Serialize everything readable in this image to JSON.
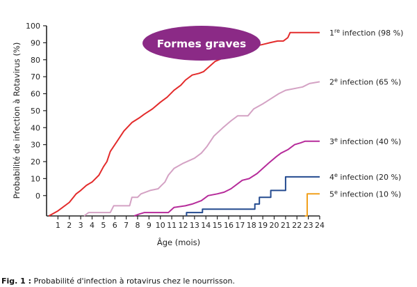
{
  "chart_data": {
    "type": "line",
    "xlabel": "Âge (mois)",
    "ylabel": "Probabilité de infection à Rotavirus (%)",
    "x_ticks": [
      1,
      2,
      3,
      4,
      5,
      6,
      7,
      8,
      9,
      10,
      11,
      12,
      13,
      14,
      15,
      16,
      17,
      18,
      19,
      20,
      21,
      22,
      23,
      24
    ],
    "y_ticks": [
      {
        "label": "100",
        "value": 100
      },
      {
        "label": "90",
        "value": 90
      },
      {
        "label": "80",
        "value": 80
      },
      {
        "label": "70",
        "value": 70
      },
      {
        "label": "60",
        "value": 60
      },
      {
        "label": "50",
        "value": 50
      },
      {
        "label": "40",
        "value": 40
      },
      {
        "label": "30",
        "value": 30
      },
      {
        "label": "20",
        "value": 20
      },
      {
        "label": "10",
        "value": 10
      },
      {
        "label": "0",
        "value": 0
      }
    ],
    "xlim": [
      0,
      24
    ],
    "ylim": [
      -12,
      100
    ],
    "annotation": {
      "text": "Formes graves",
      "color": "#8b2a86"
    },
    "series": [
      {
        "name": "1re infection (98 %)",
        "label_main": "1",
        "label_sup": "re",
        "label_rest": " infection (98 %)",
        "color": "#e32b2b",
        "points": [
          [
            0.2,
            -12
          ],
          [
            1,
            -9
          ],
          [
            2,
            -4
          ],
          [
            2.6,
            1
          ],
          [
            3,
            3
          ],
          [
            3.5,
            6
          ],
          [
            4,
            8
          ],
          [
            4.6,
            12
          ],
          [
            5,
            17
          ],
          [
            5.3,
            20
          ],
          [
            5.6,
            26
          ],
          [
            6.2,
            32
          ],
          [
            6.8,
            38
          ],
          [
            7.5,
            43
          ],
          [
            8.2,
            46
          ],
          [
            8.6,
            48
          ],
          [
            9.3,
            51
          ],
          [
            10,
            55
          ],
          [
            10.6,
            58
          ],
          [
            11.2,
            62
          ],
          [
            11.8,
            65
          ],
          [
            12.2,
            68
          ],
          [
            12.8,
            71
          ],
          [
            13.4,
            72
          ],
          [
            13.8,
            73
          ],
          [
            14.3,
            76
          ],
          [
            14.8,
            79
          ],
          [
            15.5,
            81
          ],
          [
            16.2,
            83
          ],
          [
            16.8,
            85
          ],
          [
            17.5,
            87
          ],
          [
            18.3,
            88
          ],
          [
            19,
            89
          ],
          [
            19.6,
            90
          ],
          [
            20.3,
            91
          ],
          [
            20.8,
            91
          ],
          [
            21.2,
            93
          ],
          [
            21.4,
            96
          ],
          [
            22.4,
            96
          ],
          [
            23,
            96
          ],
          [
            24,
            96
          ]
        ]
      },
      {
        "name": "2e infection (65 %)",
        "label_main": "2",
        "label_sup": "e",
        "label_rest": " infection (65 %)",
        "color": "#d4a2c4",
        "points": [
          [
            3.3,
            -12
          ],
          [
            3.7,
            -10
          ],
          [
            5.6,
            -10
          ],
          [
            5.9,
            -6
          ],
          [
            7.3,
            -6
          ],
          [
            7.5,
            -1
          ],
          [
            8,
            -1
          ],
          [
            8.3,
            1
          ],
          [
            9.1,
            3
          ],
          [
            9.8,
            4
          ],
          [
            10.1,
            6
          ],
          [
            10.4,
            8
          ],
          [
            10.7,
            12
          ],
          [
            11.2,
            16
          ],
          [
            12,
            19
          ],
          [
            13,
            22
          ],
          [
            13.6,
            25
          ],
          [
            14.1,
            29
          ],
          [
            14.7,
            35
          ],
          [
            15.5,
            40
          ],
          [
            16.2,
            44
          ],
          [
            16.8,
            47
          ],
          [
            17.7,
            47
          ],
          [
            18.2,
            51
          ],
          [
            19,
            54
          ],
          [
            19.7,
            57
          ],
          [
            20.4,
            60
          ],
          [
            21,
            62
          ],
          [
            22.5,
            64
          ],
          [
            23.1,
            66
          ],
          [
            24,
            67
          ]
        ]
      },
      {
        "name": "3e infection (40 %)",
        "label_main": "3",
        "label_sup": "e",
        "label_rest": " infection (40 %)",
        "color": "#b62b9a",
        "points": [
          [
            7.7,
            -12
          ],
          [
            8.1,
            -11
          ],
          [
            8.6,
            -10
          ],
          [
            10.7,
            -10
          ],
          [
            11.2,
            -7
          ],
          [
            12.2,
            -6
          ],
          [
            12.8,
            -5
          ],
          [
            13.6,
            -3
          ],
          [
            14.2,
            0
          ],
          [
            15,
            1
          ],
          [
            15.6,
            2
          ],
          [
            16.2,
            4
          ],
          [
            16.8,
            7
          ],
          [
            17.2,
            9
          ],
          [
            17.8,
            10
          ],
          [
            18.5,
            13
          ],
          [
            19,
            16
          ],
          [
            19.5,
            19
          ],
          [
            20.2,
            23
          ],
          [
            20.6,
            25
          ],
          [
            21.2,
            27
          ],
          [
            21.8,
            30
          ],
          [
            22.3,
            31
          ],
          [
            22.7,
            32
          ],
          [
            24,
            32
          ]
        ]
      },
      {
        "name": "4e infection (20 %)",
        "label_main": "4",
        "label_sup": "e",
        "label_rest": " infection (20 %)",
        "color": "#234a8f",
        "points": [
          [
            12.3,
            -12
          ],
          [
            12.3,
            -10
          ],
          [
            13.7,
            -10
          ],
          [
            13.7,
            -8
          ],
          [
            14.5,
            -8
          ],
          [
            18.3,
            -8
          ],
          [
            18.3,
            -5
          ],
          [
            18.7,
            -5
          ],
          [
            18.7,
            -1
          ],
          [
            19.7,
            -1
          ],
          [
            19.7,
            3
          ],
          [
            21,
            3
          ],
          [
            21,
            11
          ],
          [
            24,
            11
          ]
        ]
      },
      {
        "name": "5e infection (10 %)",
        "label_main": "5",
        "label_sup": "e",
        "label_rest": " infection (10 %)",
        "color": "#f1a01c",
        "points": [
          [
            22.7,
            -12
          ],
          [
            22.9,
            -12
          ],
          [
            22.9,
            1
          ],
          [
            24,
            1
          ]
        ]
      }
    ]
  },
  "caption": {
    "prefix": "Fig. 1 :",
    "text": " Probabilité d'infection à rotavirus chez le nourrisson."
  }
}
